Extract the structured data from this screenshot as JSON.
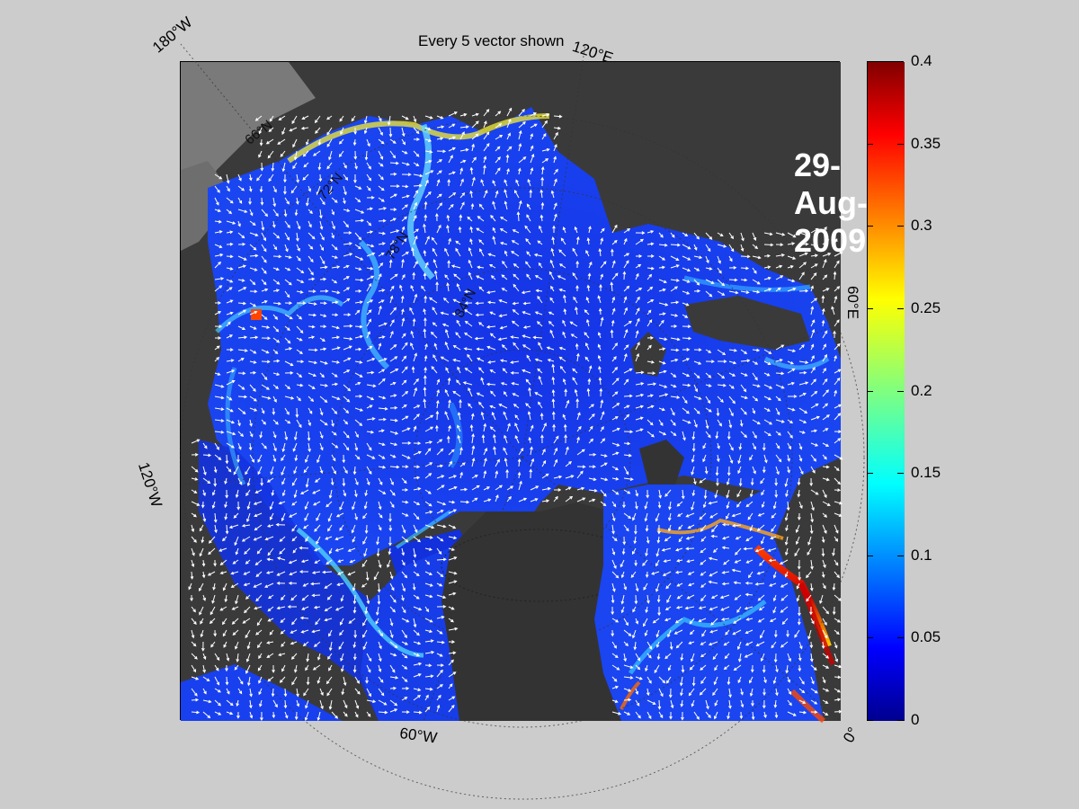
{
  "title": "Every 5 vector shown",
  "date_label": "29-Aug-2009",
  "longitude_labels": {
    "lon_180w": "180°W",
    "lon_120e": "120°E",
    "lon_60e": "60°E",
    "lon_120w": "120°W",
    "lon_60w": "60°W",
    "lon_0": "0°"
  },
  "latitude_labels": [
    "66°N",
    "72°N",
    "78°N",
    "84°N"
  ],
  "colorbar": {
    "ticks": [
      "0.4",
      "0.35",
      "0.3",
      "0.25",
      "0.2",
      "0.15",
      "0.1",
      "0.05",
      "0"
    ],
    "min": 0,
    "max": 0.4,
    "colormap": "jet"
  },
  "colors": {
    "background": "#cccccc",
    "land": "#3a3a3a",
    "low_value": "#0a2fd8",
    "high_value": "#d40000",
    "vectors": "#ffffff"
  }
}
